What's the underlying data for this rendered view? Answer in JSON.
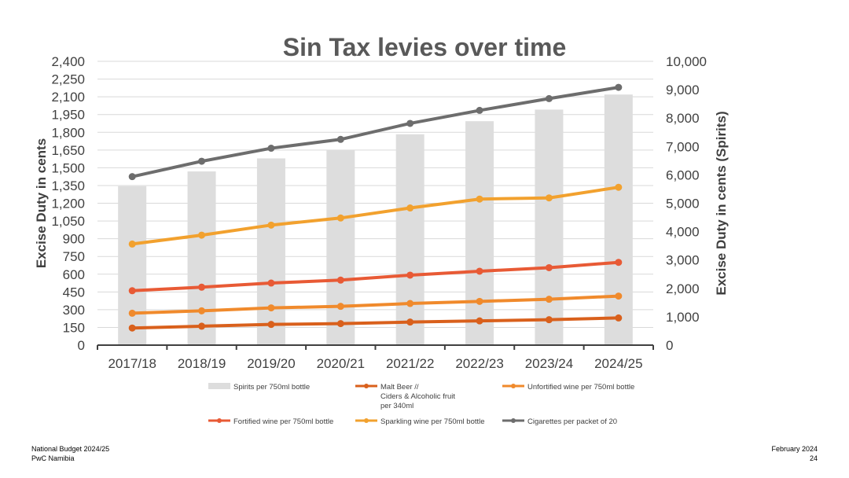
{
  "footer": {
    "left_line1": "National Budget 2024/25",
    "left_line2": "PwC Namibia",
    "right_line1": "February 2024",
    "right_line2": "24"
  },
  "chart_data": {
    "type": "bar+line",
    "title": "Sin Tax levies over time",
    "categories": [
      "2017/18",
      "2018/19",
      "2019/20",
      "2020/21",
      "2021/22",
      "2022/23",
      "2023/24",
      "2024/25"
    ],
    "ylabel": "Excise Duty in cents",
    "ylabel_right": "Excise Duty in cents (Spirits)",
    "ylim": [
      0,
      2400
    ],
    "ylim_right": [
      0,
      10000
    ],
    "yticks": [
      "0",
      "150",
      "300",
      "450",
      "600",
      "750",
      "900",
      "1,050",
      "1,200",
      "1,350",
      "1,500",
      "1,650",
      "1,800",
      "1,950",
      "2,100",
      "2,250",
      "2,400"
    ],
    "yticks_right": [
      "0",
      "1,000",
      "2,000",
      "3,000",
      "4,000",
      "5,000",
      "6,000",
      "7,000",
      "8,000",
      "9,000",
      "10,000"
    ],
    "grid": true,
    "legend_position": "bottom",
    "series": [
      {
        "name": "Spirits per 750ml bottle",
        "kind": "bar",
        "axis": "right",
        "color": "#dddddd",
        "values": [
          5600,
          6120,
          6580,
          6860,
          7430,
          7890,
          8300,
          8830
        ]
      },
      {
        "name": "Malt Beer // Ciders & Alcoholic fruit per 340ml",
        "kind": "line",
        "axis": "left",
        "color": "#d9601c",
        "values": [
          145,
          160,
          175,
          182,
          195,
          205,
          215,
          230
        ]
      },
      {
        "name": "Unfortified wine per 750ml bottle",
        "kind": "line",
        "axis": "left",
        "color": "#f08a2c",
        "values": [
          270,
          290,
          315,
          328,
          352,
          370,
          388,
          415
        ]
      },
      {
        "name": "Fortified wine per 750ml bottle",
        "kind": "line",
        "axis": "left",
        "color": "#e85a35",
        "values": [
          460,
          490,
          525,
          550,
          592,
          625,
          655,
          700
        ]
      },
      {
        "name": "Sparkling wine per 750ml bottle",
        "kind": "line",
        "axis": "left",
        "color": "#f2a12e",
        "values": [
          855,
          930,
          1015,
          1075,
          1160,
          1235,
          1245,
          1335
        ]
      },
      {
        "name": "Cigarettes per packet of 20",
        "kind": "line",
        "axis": "left",
        "color": "#6d6d6d",
        "values": [
          1425,
          1555,
          1665,
          1740,
          1875,
          1985,
          2085,
          2180
        ]
      }
    ]
  }
}
